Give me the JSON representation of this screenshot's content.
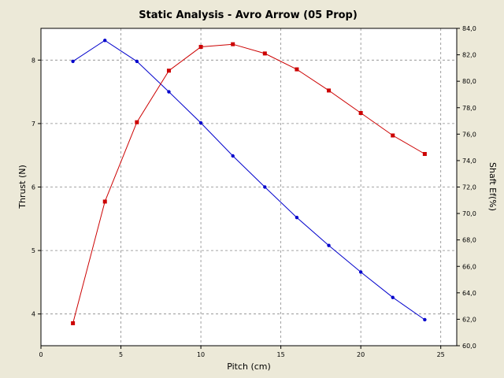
{
  "chart_data": {
    "type": "line",
    "title": "Static Analysis - Avro Arrow (05 Prop)",
    "xlabel": "Pitch (cm)",
    "ylabel_left": "Thrust (N)",
    "ylabel_right": "Shaft Ef(%)",
    "xlim": [
      0,
      26
    ],
    "ylim_left": [
      3.5,
      8.5
    ],
    "ylim_right": [
      60.0,
      84.0
    ],
    "x_ticks": [
      0,
      5,
      10,
      15,
      20,
      25
    ],
    "y_left_ticks": [
      4,
      5,
      6,
      7,
      8
    ],
    "y_right_ticks": [
      "60,0",
      "62,0",
      "64,0",
      "66,0",
      "68,0",
      "70,0",
      "72,0",
      "74,0",
      "76,0",
      "78,0",
      "80,0",
      "82,0",
      "84,0"
    ],
    "grid": true,
    "series": [
      {
        "axis": "left",
        "color": "#0000cc",
        "marker": "circle",
        "x": [
          2,
          4,
          6,
          8,
          10,
          12,
          14,
          16,
          18,
          20,
          22,
          24
        ],
        "y": [
          7.98,
          8.31,
          7.98,
          7.5,
          7.01,
          6.49,
          6.0,
          5.52,
          5.08,
          4.66,
          4.26,
          3.91
        ]
      },
      {
        "axis": "right",
        "color": "#cc0000",
        "marker": "square",
        "x": [
          2,
          4,
          6,
          8,
          10,
          12,
          14,
          16,
          18,
          20,
          22,
          24
        ],
        "y": [
          61.7,
          70.9,
          76.9,
          80.8,
          82.6,
          82.8,
          82.1,
          80.9,
          79.3,
          77.6,
          75.9,
          74.5
        ]
      }
    ]
  }
}
